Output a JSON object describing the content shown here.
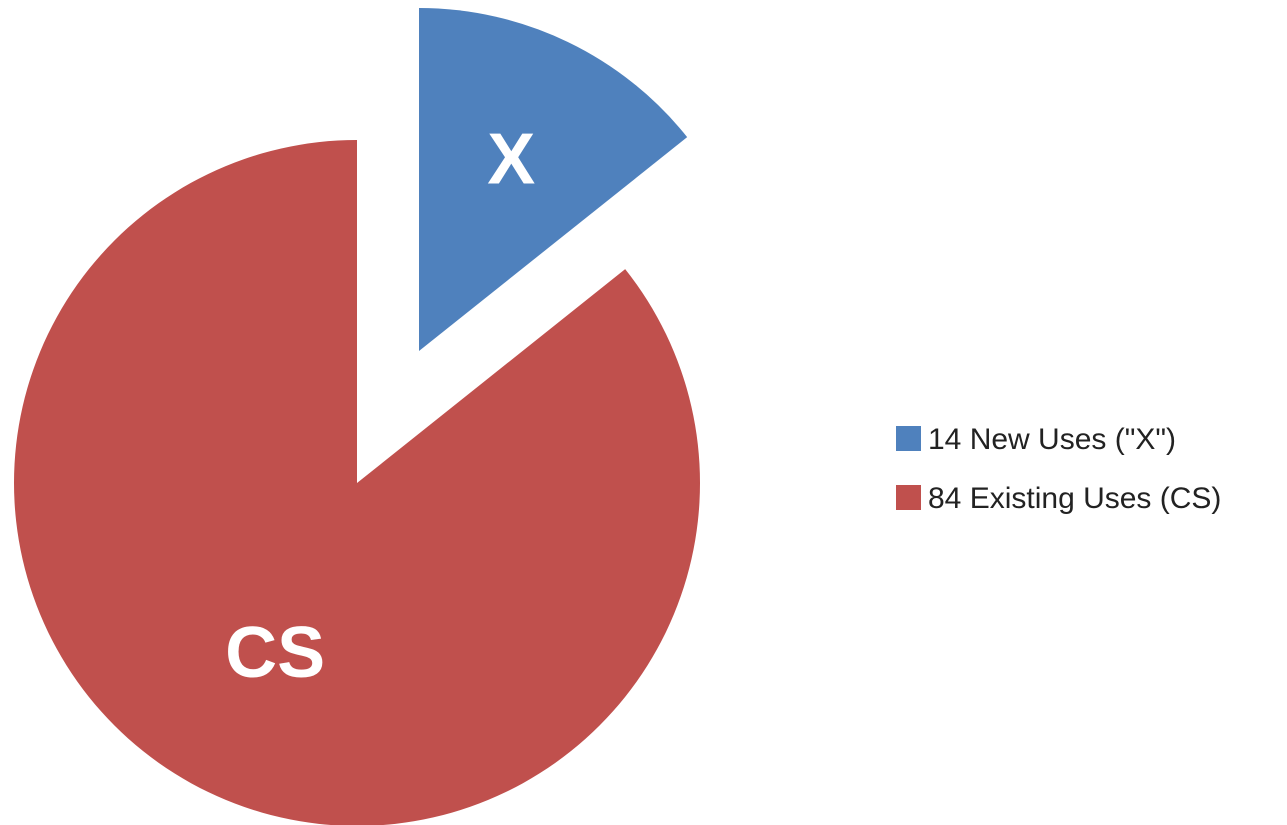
{
  "chart_data": {
    "type": "pie",
    "exploded": true,
    "slices": [
      {
        "value": 14,
        "label": "X",
        "legend": "14 New Uses (\"X\")",
        "color": "#4f81bd"
      },
      {
        "value": 84,
        "label": "CS",
        "legend": "84 Existing Uses (CS)",
        "color": "#c0504d"
      }
    ],
    "legend_position": "right"
  }
}
